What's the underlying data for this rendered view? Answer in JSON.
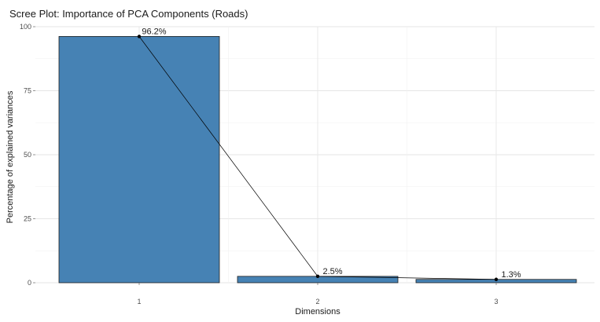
{
  "chart_data": {
    "type": "bar",
    "title": "Scree Plot: Importance of PCA Components (Roads)",
    "xlabel": "Dimensions",
    "ylabel": "Percentage of explained variances",
    "categories": [
      "1",
      "2",
      "3"
    ],
    "values": [
      96.2,
      2.5,
      1.3
    ],
    "data_labels": [
      "96.2%",
      "2.5%",
      "1.3%"
    ],
    "ylim": [
      0,
      100
    ],
    "yticks": [
      0,
      25,
      50,
      75,
      100
    ],
    "overlay_line": true,
    "grid": true,
    "legend": "none",
    "colors": {
      "bar_fill": "#4682b4",
      "bar_border": "#1f1f1f",
      "line": "#000000"
    }
  }
}
